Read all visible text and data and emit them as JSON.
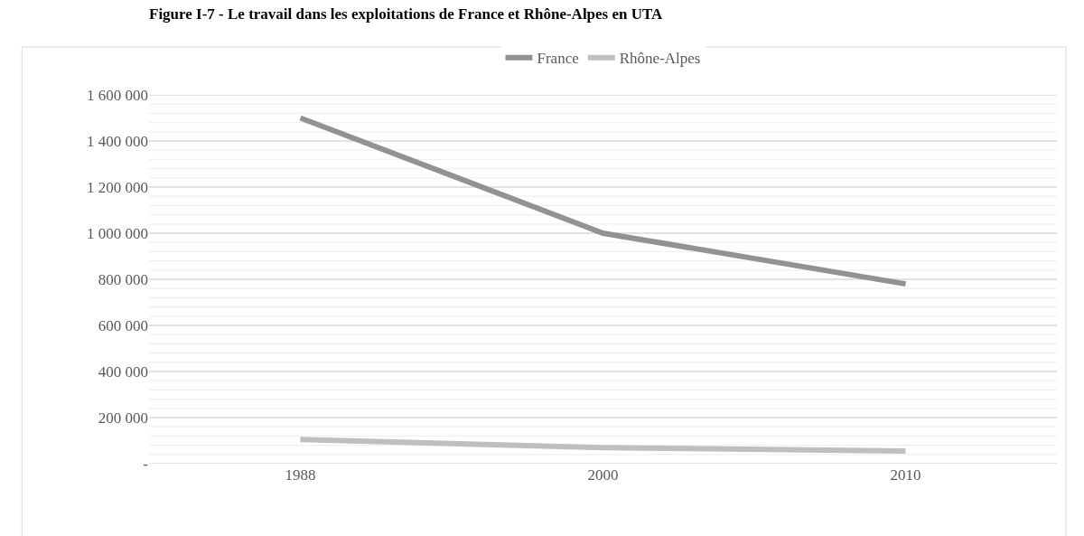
{
  "chart_data": {
    "type": "line",
    "title": "Figure I-7 - Le travail dans les exploitations de France et Rhône-Alpes en UTA",
    "categories": [
      "1988",
      "2000",
      "2010"
    ],
    "series": [
      {
        "name": "France",
        "color": "#929292",
        "values": [
          1500000,
          1000000,
          780000
        ]
      },
      {
        "name": "Rhône-Alpes",
        "color": "#bfbfbf",
        "values": [
          105000,
          70000,
          55000
        ]
      }
    ],
    "ylim": [
      0,
      1600000
    ],
    "yticks": [
      {
        "value": 0,
        "label": "-"
      },
      {
        "value": 40000,
        "label": null
      },
      {
        "value": 80000,
        "label": null
      },
      {
        "value": 120000,
        "label": null
      },
      {
        "value": 160000,
        "label": null
      },
      {
        "value": 200000,
        "label": "200 000"
      },
      {
        "value": 240000,
        "label": null
      },
      {
        "value": 280000,
        "label": null
      },
      {
        "value": 320000,
        "label": null
      },
      {
        "value": 360000,
        "label": null
      },
      {
        "value": 400000,
        "label": "400 000"
      },
      {
        "value": 440000,
        "label": null
      },
      {
        "value": 480000,
        "label": null
      },
      {
        "value": 520000,
        "label": null
      },
      {
        "value": 560000,
        "label": null
      },
      {
        "value": 600000,
        "label": "600 000"
      },
      {
        "value": 640000,
        "label": null
      },
      {
        "value": 680000,
        "label": null
      },
      {
        "value": 720000,
        "label": null
      },
      {
        "value": 760000,
        "label": null
      },
      {
        "value": 800000,
        "label": "800 000"
      },
      {
        "value": 840000,
        "label": null
      },
      {
        "value": 880000,
        "label": null
      },
      {
        "value": 920000,
        "label": null
      },
      {
        "value": 960000,
        "label": null
      },
      {
        "value": 1000000,
        "label": "1 000 000"
      },
      {
        "value": 1040000,
        "label": null
      },
      {
        "value": 1080000,
        "label": null
      },
      {
        "value": 1120000,
        "label": null
      },
      {
        "value": 1160000,
        "label": null
      },
      {
        "value": 1200000,
        "label": "1 200 000"
      },
      {
        "value": 1240000,
        "label": null
      },
      {
        "value": 1280000,
        "label": null
      },
      {
        "value": 1320000,
        "label": null
      },
      {
        "value": 1360000,
        "label": null
      },
      {
        "value": 1400000,
        "label": "1 400 000"
      },
      {
        "value": 1440000,
        "label": null
      },
      {
        "value": 1480000,
        "label": null
      },
      {
        "value": 1520000,
        "label": null
      },
      {
        "value": 1560000,
        "label": null
      },
      {
        "value": 1600000,
        "label": "1 600 000"
      }
    ],
    "grid": "y",
    "legend": "top",
    "marker": "none",
    "line_style": "solid"
  }
}
